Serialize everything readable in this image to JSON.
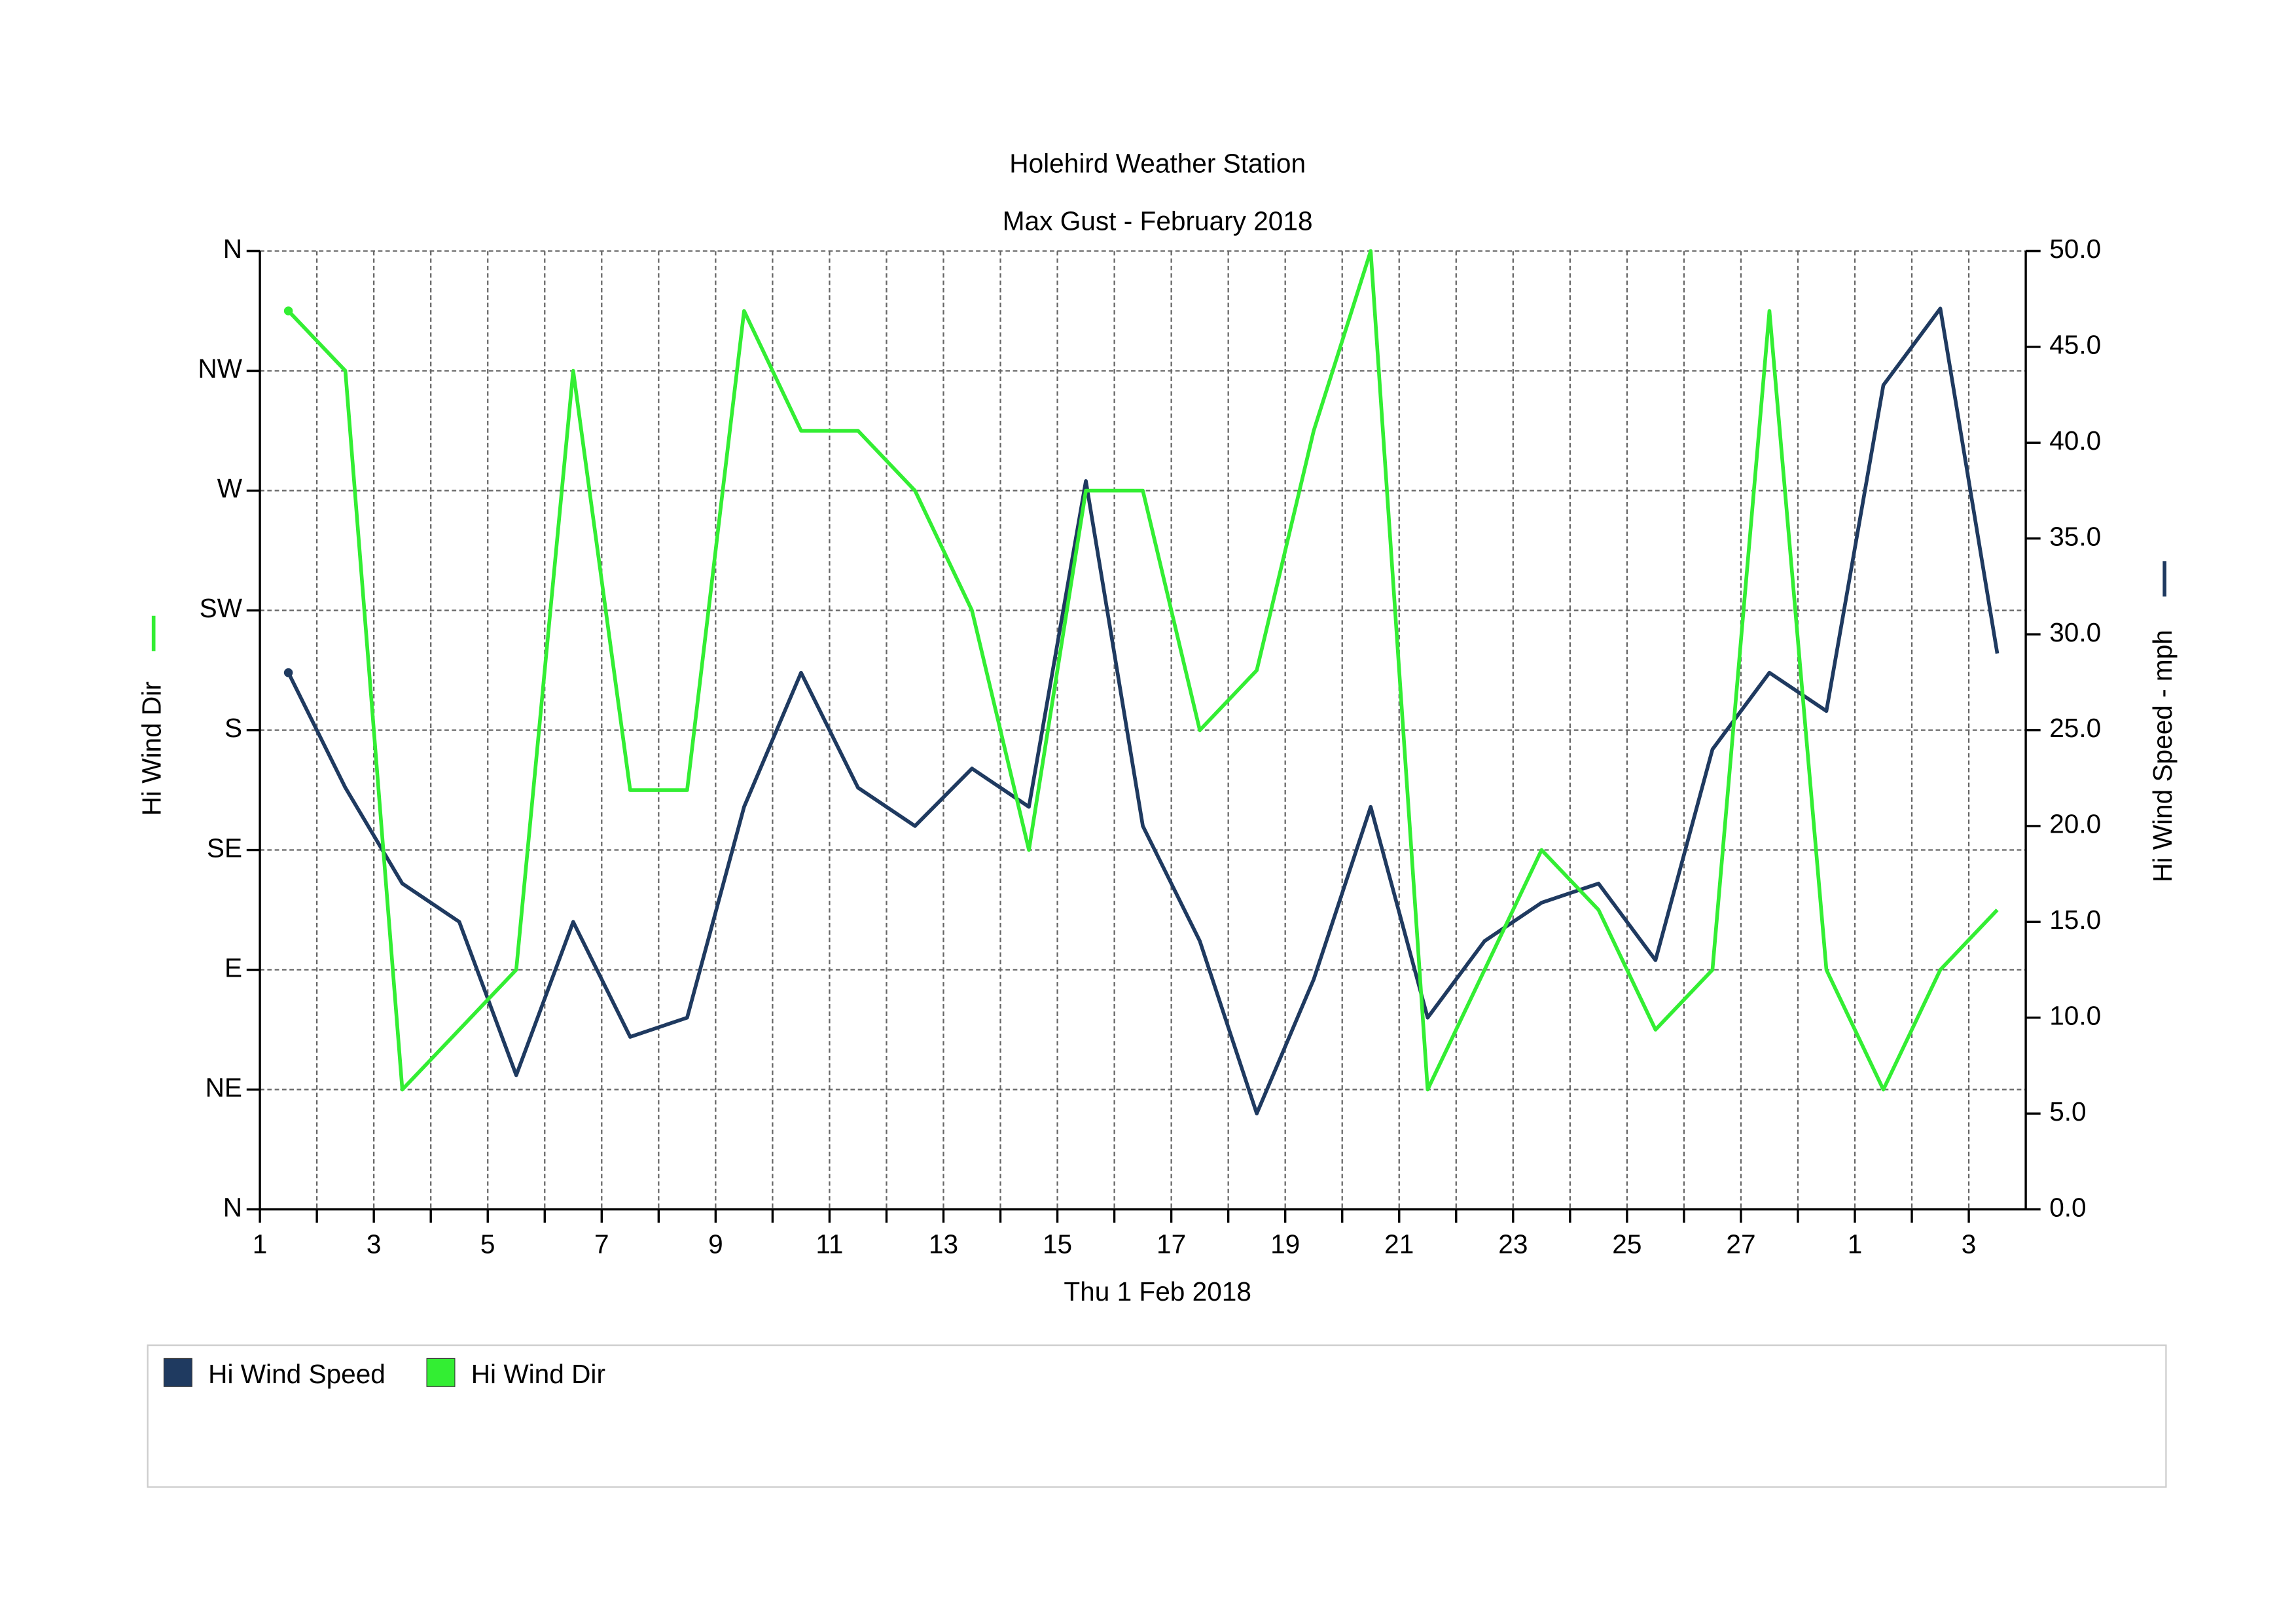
{
  "chart_data": {
    "type": "line",
    "title": "Holehird Weather Station",
    "subtitle": "Max Gust - February 2018",
    "xlabel": "Thu 1 Feb 2018",
    "ylabel": "Hi Wind Dir",
    "y2label": "Hi Wind Speed - mph",
    "x": [
      0.5,
      1.5,
      2.5,
      3.5,
      4.5,
      5.5,
      6.5,
      7.5,
      8.5,
      9.5,
      10.5,
      11.5,
      12.5,
      13.5,
      14.5,
      15.5,
      16.5,
      17.5,
      18.5,
      19.5,
      20.5,
      21.5,
      22.5,
      23.5,
      24.5,
      25.5,
      26.5,
      27.5,
      28.5,
      29.5,
      30.5
    ],
    "xlim": [
      0,
      31
    ],
    "xticks": [
      {
        "value": 0,
        "label": "1"
      },
      {
        "value": 2,
        "label": "3"
      },
      {
        "value": 4,
        "label": "5"
      },
      {
        "value": 6,
        "label": "7"
      },
      {
        "value": 8,
        "label": "9"
      },
      {
        "value": 10,
        "label": "11"
      },
      {
        "value": 12,
        "label": "13"
      },
      {
        "value": 14,
        "label": "15"
      },
      {
        "value": 16,
        "label": "17"
      },
      {
        "value": 18,
        "label": "19"
      },
      {
        "value": 20,
        "label": "21"
      },
      {
        "value": 22,
        "label": "23"
      },
      {
        "value": 24,
        "label": "25"
      },
      {
        "value": 26,
        "label": "27"
      },
      {
        "value": 28,
        "label": "1"
      },
      {
        "value": 30,
        "label": "3"
      }
    ],
    "x_minor_ticks": [
      1,
      3,
      5,
      7,
      9,
      11,
      13,
      15,
      17,
      19,
      21,
      23,
      25,
      27,
      29
    ],
    "ylim": [
      0,
      360
    ],
    "yticks": [
      {
        "value": 0,
        "label": "N"
      },
      {
        "value": 45,
        "label": "NE"
      },
      {
        "value": 90,
        "label": "E"
      },
      {
        "value": 135,
        "label": "SE"
      },
      {
        "value": 180,
        "label": "S"
      },
      {
        "value": 225,
        "label": "SW"
      },
      {
        "value": 270,
        "label": "W"
      },
      {
        "value": 315,
        "label": "NW"
      },
      {
        "value": 360,
        "label": "N"
      }
    ],
    "y2lim": [
      0,
      50
    ],
    "y2ticks": [
      {
        "value": 0,
        "label": "0.0"
      },
      {
        "value": 5,
        "label": "5.0"
      },
      {
        "value": 10,
        "label": "10.0"
      },
      {
        "value": 15,
        "label": "15.0"
      },
      {
        "value": 20,
        "label": "20.0"
      },
      {
        "value": 25,
        "label": "25.0"
      },
      {
        "value": 30,
        "label": "30.0"
      },
      {
        "value": 35,
        "label": "35.0"
      },
      {
        "value": 40,
        "label": "40.0"
      },
      {
        "value": 45,
        "label": "45.0"
      },
      {
        "value": 50,
        "label": "50.0"
      }
    ],
    "grid": true,
    "legend": "bottom",
    "series": [
      {
        "name": "Hi Wind Speed",
        "color": "#1f3a60",
        "axis": "y2",
        "values": [
          28,
          22,
          17,
          15,
          7,
          15,
          9,
          10,
          21,
          28,
          22,
          20,
          23,
          21,
          38,
          20,
          14,
          5,
          12,
          21,
          10,
          14,
          16,
          17,
          13,
          24,
          28,
          26,
          43,
          47,
          29
        ]
      },
      {
        "name": "Hi Wind Dir",
        "color": "#33ee33",
        "values": [
          337.5,
          315,
          45,
          67.5,
          90,
          315,
          157.5,
          157.5,
          337.5,
          292.5,
          292.5,
          270,
          225,
          135,
          270,
          270,
          180,
          202.5,
          292.5,
          360,
          45,
          90,
          135,
          112.5,
          67.5,
          90,
          337.5,
          90,
          45,
          90,
          112.5
        ]
      }
    ]
  }
}
